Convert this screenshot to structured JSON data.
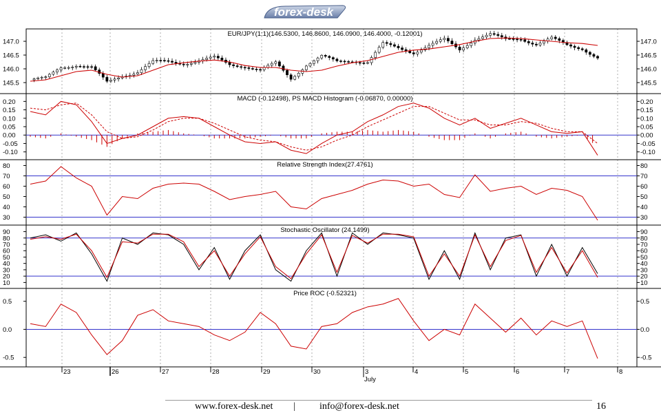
{
  "header": {
    "logo_text": "forex-desk"
  },
  "footer": {
    "website": "www.forex-desk.net",
    "separator": "|",
    "email": "info@forex-desk.net",
    "page_number": "16"
  },
  "colors": {
    "price_candle": "#000000",
    "moving_average": "#cc0000",
    "indicator_line": "#cc0000",
    "signal_line": "#cc0000",
    "histogram": "#cc0000",
    "stochastic_k": "#000000",
    "stochastic_d": "#cc0000",
    "reference_line": "#3333cc",
    "grid": "#9a9a9a"
  },
  "chart_data": {
    "type": "line",
    "x_axis": {
      "ticks": [
        "23",
        "26",
        "27",
        "28",
        "29",
        "30",
        "3",
        "4",
        "5",
        "6",
        "7",
        "8"
      ],
      "month_label": "July",
      "month_label_under": "3",
      "period_start_marker_index": 1
    },
    "panels": [
      {
        "id": "price",
        "title": "EUR/JPY(1:1)(146.5300, 146.8600, 146.0900, 146.4000, -0.12001)",
        "type": "candlestick",
        "ylim": [
          145.2,
          147.35
        ],
        "yticks": [
          "147.0",
          "146.5",
          "146.0",
          "145.5"
        ],
        "ytick_values": [
          147.0,
          146.5,
          146.0,
          145.5
        ],
        "grid": true,
        "close_anchors": [
          145.6,
          145.65,
          146.05,
          146.15,
          146.05,
          145.5,
          145.75,
          145.9,
          146.25,
          146.25,
          146.2,
          146.3,
          146.4,
          146.15,
          146.1,
          145.95,
          146.2,
          145.65,
          146.15,
          146.45,
          146.25,
          146.3,
          146.25,
          146.9,
          146.75,
          146.6,
          146.85,
          147.05,
          146.7,
          147.1,
          147.25,
          147.05,
          147.1,
          146.9,
          147.1,
          146.85,
          146.75,
          146.4
        ],
        "moving_average_anchors": [
          145.55,
          145.6,
          145.75,
          145.9,
          145.95,
          145.8,
          145.7,
          145.75,
          145.95,
          146.15,
          146.22,
          146.28,
          146.32,
          146.25,
          146.12,
          146.05,
          146.05,
          145.95,
          145.9,
          145.95,
          146.1,
          146.22,
          146.3,
          146.45,
          146.6,
          146.68,
          146.72,
          146.8,
          146.88,
          147.0,
          147.1,
          147.12,
          147.1,
          147.05,
          147.0,
          146.95,
          146.92,
          146.85
        ]
      },
      {
        "id": "macd",
        "title": "MACD (-0.12498), PS MACD Histogram (-0.06870, 0.00000)",
        "type": "line",
        "ylim": [
          -0.13,
          0.23
        ],
        "yticks": [
          "0.20",
          "0.15",
          "0.10",
          "0.05",
          "0.00",
          "-0.05",
          "-0.10"
        ],
        "ytick_values": [
          0.2,
          0.15,
          0.1,
          0.05,
          0.0,
          -0.05,
          -0.1
        ],
        "reference_lines": [
          0.0
        ],
        "series": [
          {
            "role": "macd",
            "values": [
              0.14,
              0.12,
              0.2,
              0.18,
              0.08,
              -0.05,
              -0.02,
              0.0,
              0.05,
              0.1,
              0.11,
              0.1,
              0.05,
              0.0,
              -0.04,
              -0.05,
              -0.04,
              -0.09,
              -0.11,
              -0.05,
              0.0,
              0.02,
              0.08,
              0.12,
              0.17,
              0.19,
              0.16,
              0.1,
              0.06,
              0.1,
              0.04,
              0.07,
              0.1,
              0.06,
              0.02,
              0.01,
              0.02,
              -0.12
            ]
          },
          {
            "role": "signal",
            "values": [
              0.16,
              0.15,
              0.18,
              0.19,
              0.12,
              0.02,
              -0.02,
              -0.01,
              0.03,
              0.08,
              0.1,
              0.1,
              0.07,
              0.03,
              -0.01,
              -0.03,
              -0.04,
              -0.07,
              -0.09,
              -0.07,
              -0.03,
              0.0,
              0.05,
              0.09,
              0.13,
              0.17,
              0.17,
              0.13,
              0.09,
              0.09,
              0.06,
              0.06,
              0.08,
              0.07,
              0.04,
              0.02,
              0.02,
              -0.05
            ]
          },
          {
            "role": "histogram",
            "values": [
              -0.01,
              -0.02,
              0.01,
              -0.01,
              -0.03,
              -0.07,
              -0.02,
              0.01,
              0.02,
              0.03,
              0.01,
              0.0,
              -0.02,
              -0.02,
              -0.02,
              -0.01,
              0.0,
              -0.02,
              -0.02,
              0.01,
              0.02,
              0.02,
              0.03,
              0.02,
              0.03,
              0.02,
              -0.01,
              -0.03,
              -0.03,
              0.01,
              -0.02,
              0.01,
              0.02,
              -0.01,
              -0.02,
              -0.01,
              0.0,
              -0.07
            ]
          }
        ]
      },
      {
        "id": "rsi",
        "title": "Relative Strength Index(27.4761)",
        "type": "line",
        "ylim": [
          25,
          83
        ],
        "yticks": [
          "80",
          "70",
          "60",
          "50",
          "40",
          "30"
        ],
        "ytick_values": [
          80,
          70,
          60,
          50,
          40,
          30
        ],
        "reference_lines": [
          70,
          30
        ],
        "series": [
          {
            "role": "rsi",
            "values": [
              62,
              65,
              79,
              68,
              60,
              32,
              50,
              48,
              58,
              62,
              63,
              62,
              55,
              47,
              50,
              52,
              55,
              40,
              38,
              48,
              52,
              56,
              62,
              66,
              65,
              60,
              62,
              52,
              49,
              71,
              55,
              58,
              60,
              52,
              58,
              56,
              50,
              27
            ]
          }
        ]
      },
      {
        "id": "stochastic",
        "title": "Stochastic Oscillator (24.1499)",
        "type": "line",
        "ylim": [
          5,
          96
        ],
        "yticks": [
          "90",
          "80",
          "70",
          "60",
          "50",
          "40",
          "30",
          "20",
          "10"
        ],
        "ytick_values": [
          90,
          80,
          70,
          60,
          50,
          40,
          30,
          20,
          10
        ],
        "reference_lines": [
          80,
          20
        ],
        "series": [
          {
            "role": "%K",
            "values": [
              80,
              85,
              75,
              88,
              55,
              12,
              80,
              70,
              88,
              85,
              70,
              30,
              65,
              15,
              60,
              85,
              30,
              12,
              60,
              88,
              20,
              88,
              70,
              88,
              85,
              80,
              15,
              60,
              15,
              88,
              30,
              80,
              85,
              20,
              70,
              20,
              65,
              24
            ]
          },
          {
            "role": "%D",
            "values": [
              78,
              82,
              78,
              86,
              60,
              18,
              74,
              72,
              86,
              86,
              74,
              35,
              60,
              20,
              55,
              82,
              35,
              16,
              55,
              85,
              26,
              84,
              72,
              86,
              86,
              82,
              20,
              55,
              20,
              85,
              35,
              76,
              84,
              26,
              65,
              25,
              60,
              18
            ]
          }
        ]
      },
      {
        "id": "roc",
        "title": "Price ROC (-0.52321)",
        "type": "line",
        "ylim": [
          -0.62,
          0.68
        ],
        "yticks": [
          "0.5",
          "0.0",
          "-0.5"
        ],
        "ytick_values": [
          0.5,
          0.0,
          -0.5
        ],
        "reference_lines": [
          0.0
        ],
        "series": [
          {
            "role": "roc",
            "values": [
              0.1,
              0.05,
              0.45,
              0.3,
              -0.1,
              -0.45,
              -0.2,
              0.25,
              0.35,
              0.15,
              0.1,
              0.05,
              -0.1,
              -0.2,
              -0.05,
              0.3,
              0.1,
              -0.3,
              -0.35,
              0.05,
              0.1,
              0.3,
              0.4,
              0.45,
              0.55,
              0.15,
              -0.2,
              0.0,
              -0.1,
              0.45,
              0.2,
              -0.05,
              0.2,
              -0.1,
              0.15,
              0.05,
              0.15,
              -0.52
            ]
          }
        ]
      }
    ]
  }
}
